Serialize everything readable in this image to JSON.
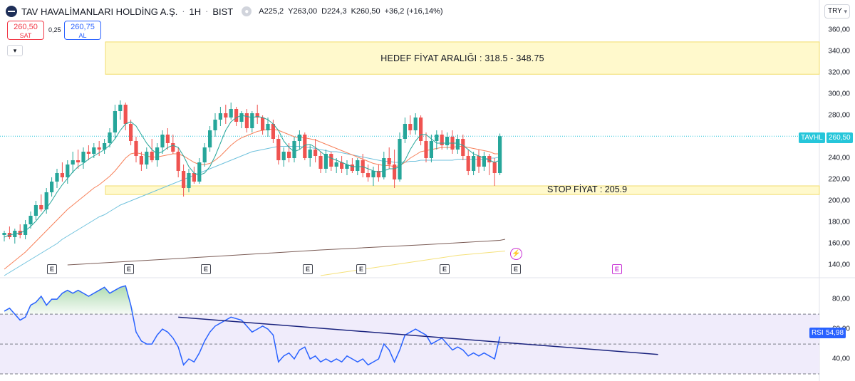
{
  "header": {
    "symbol": "TAV HAVALİMANLARI HOLDİNG A.Ş.",
    "timeframe": "1H",
    "exchange": "BIST",
    "bullet": "·",
    "ohlc_icon": "circle-dots-icon",
    "open": "A225,2",
    "high": "Y263,00",
    "low": "D224,3",
    "close": "K260,50",
    "change": "+36,2 (+16,14%)",
    "sell_price": "260,50",
    "sell_label": "SAT",
    "spread": "0,25",
    "buy_price": "260,75",
    "buy_label": "AL",
    "collapse_icon": "chevron-down-icon",
    "currency": "TRY"
  },
  "price_axis": [
    "360,00",
    "340,00",
    "320,00",
    "300,00",
    "280,00",
    "260,00",
    "240,00",
    "220,00",
    "200,00",
    "180,00",
    "160,00",
    "140,00"
  ],
  "rsi_axis": [
    "80,00",
    "60,00",
    "40,00"
  ],
  "annotations": {
    "target_zone": "HEDEF FİYAT ARALIĞI : 318.5 - 348.75",
    "stop_zone": "STOP FİYAT : 205.9"
  },
  "tags": {
    "symbol_tag": "TAVHL",
    "last_price": "260,50",
    "rsi_label": "RSI",
    "rsi_value": "54,98"
  },
  "events": {
    "earnings_letter": "E",
    "dividend_icon": "lightning-bolt-icon"
  },
  "colors": {
    "up": "#26a69a",
    "down": "#ef5350",
    "sma_fast": "#26a69a",
    "ema": "#f7815a",
    "sma_mid": "#70c2dd",
    "sma_slow": "#7b5c56",
    "sma_long": "#f5e17a",
    "rsi_line": "#2962ff",
    "zone_fill": "#fff9cc",
    "zone_border": "#f2dd6e",
    "trendline": "#1a237e"
  },
  "chart_data": [
    {
      "type": "candlestick",
      "title": "TAV HAVALİMANLARI HOLDİNG A.Ş. · 1H · BIST",
      "ylim": [
        130,
        368
      ],
      "candles": [
        [
          168,
          172,
          162,
          170
        ],
        [
          170,
          176,
          164,
          166
        ],
        [
          166,
          174,
          160,
          172
        ],
        [
          172,
          178,
          165,
          168
        ],
        [
          168,
          182,
          164,
          178
        ],
        [
          178,
          190,
          174,
          186
        ],
        [
          186,
          200,
          182,
          196
        ],
        [
          196,
          206,
          190,
          192
        ],
        [
          192,
          212,
          188,
          208
        ],
        [
          208,
          222,
          204,
          218
        ],
        [
          218,
          230,
          212,
          226
        ],
        [
          226,
          236,
          218,
          222
        ],
        [
          222,
          238,
          216,
          234
        ],
        [
          234,
          246,
          226,
          238
        ],
        [
          238,
          248,
          230,
          236
        ],
        [
          236,
          250,
          230,
          246
        ],
        [
          246,
          252,
          238,
          244
        ],
        [
          244,
          254,
          240,
          250
        ],
        [
          250,
          256,
          242,
          248
        ],
        [
          248,
          258,
          244,
          254
        ],
        [
          254,
          268,
          250,
          264
        ],
        [
          264,
          290,
          258,
          284
        ],
        [
          284,
          294,
          276,
          290
        ],
        [
          290,
          292,
          266,
          272
        ],
        [
          272,
          276,
          252,
          256
        ],
        [
          256,
          260,
          236,
          242
        ],
        [
          242,
          246,
          228,
          234
        ],
        [
          234,
          250,
          230,
          246
        ],
        [
          246,
          258,
          236,
          238
        ],
        [
          238,
          254,
          232,
          250
        ],
        [
          250,
          266,
          244,
          262
        ],
        [
          262,
          268,
          248,
          254
        ],
        [
          254,
          262,
          244,
          246
        ],
        [
          246,
          250,
          222,
          228
        ],
        [
          228,
          234,
          204,
          212
        ],
        [
          212,
          230,
          208,
          226
        ],
        [
          226,
          232,
          216,
          218
        ],
        [
          218,
          240,
          216,
          236
        ],
        [
          236,
          254,
          232,
          250
        ],
        [
          250,
          270,
          246,
          266
        ],
        [
          266,
          282,
          260,
          276
        ],
        [
          276,
          288,
          270,
          282
        ],
        [
          282,
          290,
          272,
          278
        ],
        [
          278,
          292,
          276,
          286
        ],
        [
          286,
          288,
          270,
          274
        ],
        [
          274,
          284,
          268,
          282
        ],
        [
          282,
          286,
          264,
          268
        ],
        [
          268,
          284,
          264,
          282
        ],
        [
          282,
          290,
          272,
          278
        ],
        [
          278,
          280,
          262,
          266
        ],
        [
          266,
          278,
          260,
          272
        ],
        [
          272,
          276,
          254,
          258
        ],
        [
          258,
          262,
          234,
          238
        ],
        [
          238,
          250,
          232,
          246
        ],
        [
          246,
          254,
          236,
          240
        ],
        [
          240,
          260,
          236,
          256
        ],
        [
          256,
          266,
          248,
          262
        ],
        [
          262,
          264,
          238,
          240
        ],
        [
          240,
          252,
          232,
          248
        ],
        [
          248,
          258,
          236,
          242
        ],
        [
          242,
          246,
          226,
          230
        ],
        [
          230,
          248,
          226,
          244
        ],
        [
          244,
          246,
          228,
          232
        ],
        [
          232,
          240,
          226,
          236
        ],
        [
          236,
          242,
          226,
          230
        ],
        [
          230,
          238,
          224,
          234
        ],
        [
          234,
          240,
          226,
          228
        ],
        [
          228,
          240,
          224,
          238
        ],
        [
          238,
          244,
          222,
          226
        ],
        [
          226,
          234,
          218,
          222
        ],
        [
          222,
          232,
          214,
          228
        ],
        [
          228,
          234,
          218,
          222
        ],
        [
          222,
          246,
          220,
          240
        ],
        [
          240,
          250,
          230,
          234
        ],
        [
          234,
          248,
          212,
          220
        ],
        [
          220,
          264,
          218,
          258
        ],
        [
          258,
          278,
          254,
          272
        ],
        [
          272,
          280,
          262,
          266
        ],
        [
          266,
          282,
          262,
          278
        ],
        [
          278,
          280,
          252,
          256
        ],
        [
          256,
          264,
          236,
          240
        ],
        [
          240,
          262,
          236,
          256
        ],
        [
          256,
          266,
          248,
          262
        ],
        [
          262,
          266,
          248,
          252
        ],
        [
          252,
          264,
          248,
          260
        ],
        [
          260,
          266,
          244,
          248
        ],
        [
          248,
          262,
          244,
          258
        ],
        [
          258,
          262,
          238,
          242
        ],
        [
          242,
          248,
          224,
          228
        ],
        [
          228,
          246,
          224,
          242
        ],
        [
          242,
          248,
          226,
          232
        ],
        [
          232,
          246,
          228,
          242
        ],
        [
          242,
          244,
          224,
          236
        ],
        [
          236,
          240,
          214,
          226
        ],
        [
          226,
          263,
          224,
          260.5
        ]
      ],
      "sma_fast": [
        166,
        168,
        169,
        170,
        172,
        176,
        181,
        187,
        193,
        200,
        208,
        215,
        221,
        227,
        232,
        235,
        239,
        242,
        245,
        248,
        252,
        258,
        266,
        272,
        274,
        270,
        262,
        254,
        248,
        244,
        246,
        250,
        252,
        250,
        242,
        232,
        226,
        224,
        226,
        232,
        242,
        254,
        266,
        274,
        278,
        280,
        279,
        278,
        279,
        278,
        276,
        272,
        266,
        256,
        250,
        246,
        248,
        252,
        253,
        250,
        246,
        242,
        240,
        238,
        236,
        234,
        232,
        232,
        232,
        230,
        228,
        227,
        228,
        230,
        230,
        232,
        238,
        248,
        256,
        262,
        262,
        258,
        254,
        254,
        254,
        254,
        254,
        252,
        248,
        244,
        242,
        240,
        238,
        236,
        238
      ],
      "ema": [
        136,
        140,
        144,
        148,
        152,
        157,
        162,
        167,
        172,
        177,
        182,
        187,
        192,
        196,
        200,
        204,
        208,
        212,
        215,
        219,
        223,
        228,
        234,
        240,
        244,
        245,
        244,
        242,
        241,
        241,
        242,
        243,
        244,
        244,
        242,
        239,
        236,
        234,
        234,
        235,
        238,
        242,
        247,
        252,
        256,
        259,
        261,
        263,
        265,
        266,
        267,
        267,
        266,
        264,
        262,
        260,
        259,
        259,
        258,
        257,
        255,
        253,
        251,
        249,
        247,
        245,
        243,
        241,
        239,
        237,
        235,
        234,
        233,
        233,
        232,
        233,
        236,
        240,
        243,
        246,
        247,
        248,
        249,
        250,
        250,
        250,
        251,
        251,
        250,
        249,
        248,
        247,
        246,
        244,
        244
      ],
      "sma_mid": [
        130,
        133,
        136,
        139,
        142,
        145,
        148,
        151,
        154,
        157,
        160,
        164,
        167,
        170,
        173,
        176,
        179,
        182,
        185,
        187,
        190,
        193,
        196,
        198,
        200,
        202,
        204,
        206,
        208,
        210,
        212,
        214,
        216,
        218,
        220,
        222,
        224,
        226,
        228,
        230,
        232,
        234,
        236,
        238,
        240,
        242,
        244,
        246,
        247,
        248,
        249,
        250,
        251,
        251,
        251,
        251,
        251,
        250,
        250,
        249,
        248,
        247,
        246,
        246,
        245,
        244,
        243,
        242,
        241,
        240,
        239,
        238,
        237,
        237,
        236,
        236,
        236,
        237,
        237,
        238,
        238,
        238,
        238,
        238,
        238,
        238,
        239,
        239,
        239,
        239,
        239,
        239,
        240,
        240,
        241
      ],
      "sma_slow_points": [
        [
          12,
          140
        ],
        [
          40,
          148
        ],
        [
          60,
          154
        ],
        [
          80,
          159
        ],
        [
          94,
          163
        ],
        [
          95,
          164
        ]
      ],
      "sma_long_points": [
        [
          60,
          130
        ],
        [
          75,
          141
        ],
        [
          86,
          149
        ],
        [
          95,
          153
        ]
      ],
      "target_zone": [
        318.5,
        348.75
      ],
      "stop_zone": [
        205.9,
        214
      ],
      "last_price": 260.5
    },
    {
      "type": "line",
      "title": "RSI",
      "ylim": [
        30,
        92
      ],
      "bands": [
        70,
        50,
        30
      ],
      "values": [
        72,
        74,
        70,
        66,
        68,
        76,
        78,
        82,
        76,
        80,
        80,
        84,
        86,
        84,
        86,
        84,
        82,
        84,
        86,
        88,
        84,
        86,
        88,
        89,
        76,
        58,
        52,
        50,
        50,
        56,
        60,
        58,
        54,
        48,
        36,
        40,
        38,
        44,
        52,
        58,
        62,
        64,
        66,
        68,
        67,
        66,
        62,
        58,
        60,
        62,
        60,
        56,
        38,
        42,
        44,
        40,
        46,
        48,
        40,
        42,
        38,
        40,
        38,
        40,
        38,
        42,
        40,
        38,
        40,
        36,
        38,
        40,
        50,
        46,
        38,
        46,
        56,
        58,
        60,
        58,
        56,
        50,
        52,
        54,
        50,
        46,
        48,
        46,
        42,
        44,
        42,
        44,
        42,
        40,
        55
      ],
      "trendline": [
        [
          33,
          68
        ],
        [
          124,
          43
        ]
      ],
      "last_value": 54.98
    }
  ]
}
